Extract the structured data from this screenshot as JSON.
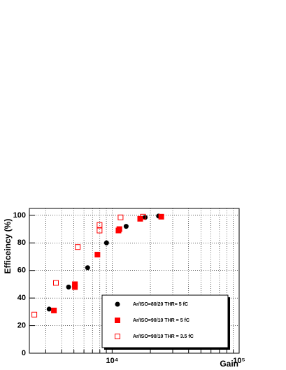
{
  "chart_data": {
    "type": "scatter",
    "x_label": "Gain",
    "y_label": "Efficeincy (%)",
    "xlim": [
      2230,
      100000
    ],
    "ylim": [
      0,
      105
    ],
    "xscale": "log",
    "grid": true,
    "xticks": [
      {
        "value": 10000,
        "label": "10⁴"
      },
      {
        "value": 100000,
        "label": "10⁵"
      }
    ],
    "xminor": [
      3000,
      4000,
      5000,
      6000,
      7000,
      8000,
      9000,
      20000,
      30000,
      40000,
      50000,
      60000,
      70000,
      80000,
      90000
    ],
    "yticks": [
      0,
      20,
      40,
      60,
      80,
      100
    ],
    "legend": "lower right",
    "series": [
      {
        "name": "Ar/ISO=80/20 THR= 5 fC",
        "color": "#000000",
        "marker": "circle",
        "x": [
          3190,
          4540,
          6410,
          9030,
          12890,
          18200,
          23200
        ],
        "values": [
          32,
          48,
          62,
          80,
          92,
          98.5,
          99.5
        ]
      },
      {
        "name": "Ar/ISO=90/10 THR = 5 fC",
        "color": "#ff0000",
        "marker": "square",
        "x": [
          3480,
          5090,
          5090,
          7660,
          11220,
          11400,
          16630,
          24370
        ],
        "values": [
          31,
          50,
          48,
          71.5,
          89,
          90,
          97.5,
          99
        ]
      },
      {
        "name": "Ar/ISO=90/10 THR = 3.5 fC",
        "color": "#ff0000",
        "marker": "open-square",
        "x": [
          2440,
          3610,
          5360,
          7960,
          7960,
          11650,
          17500
        ],
        "values": [
          28,
          51,
          77,
          93,
          89,
          98.5,
          99
        ]
      }
    ]
  }
}
